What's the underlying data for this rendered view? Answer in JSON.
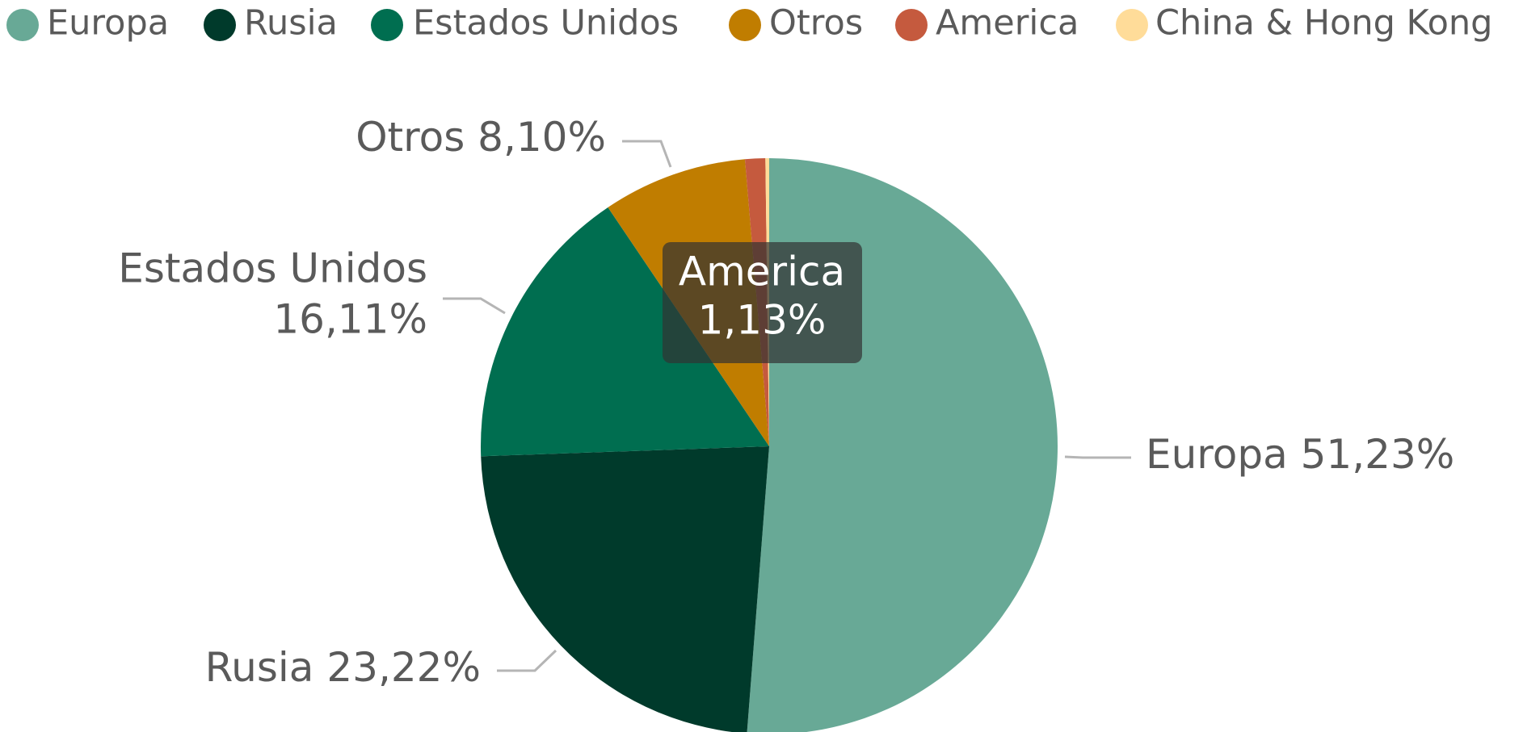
{
  "chart_data": {
    "type": "pie",
    "categories": [
      "Europa",
      "Rusia",
      "Estados Unidos",
      "Otros",
      "America",
      "China & Hong Kong"
    ],
    "values": [
      51.23,
      23.22,
      16.11,
      8.1,
      1.13,
      0.21
    ],
    "value_labels": [
      "51,23%",
      "23,22%",
      "16,11%",
      "8,10%",
      "1,13%",
      null
    ],
    "colors": [
      "#68a996",
      "#003a2b",
      "#006e50",
      "#c07d00",
      "#c55a3e",
      "#ffdc99"
    ],
    "legend": "top",
    "tooltip": {
      "category": "America",
      "value_label": "1,13%"
    }
  }
}
